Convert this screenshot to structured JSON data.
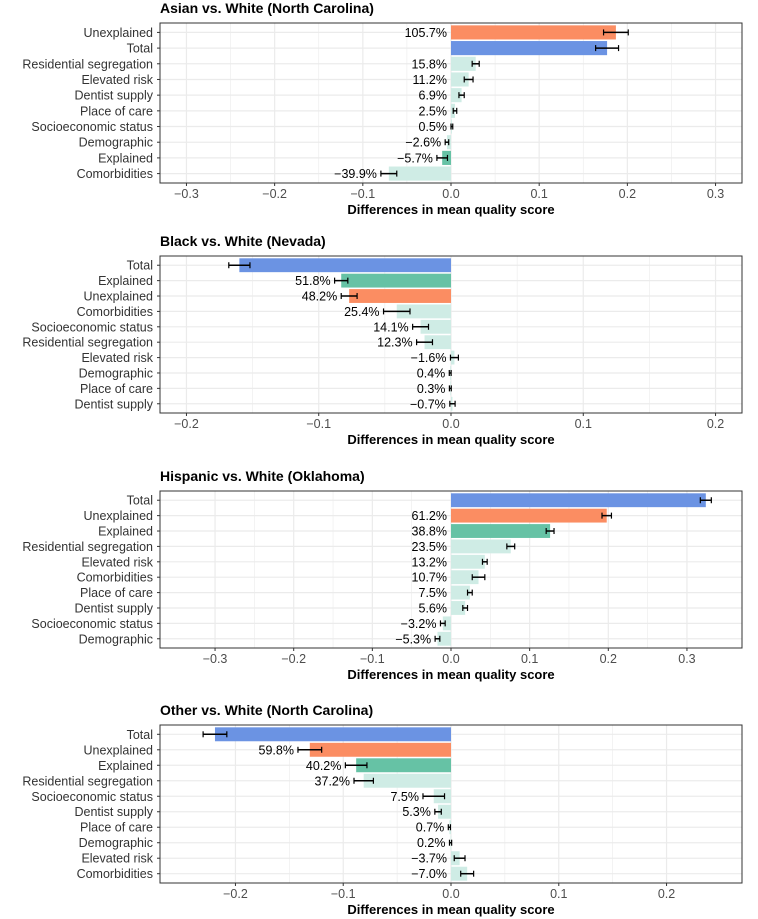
{
  "colors": {
    "Total": "#6b93e3",
    "Unexplained": "#fb8d62",
    "Explained": "#66c2a5",
    "component": "#cfece5",
    "grid": "#ebebeb",
    "frame": "#333333",
    "errorbar": "#000000"
  },
  "chart_data": [
    {
      "type": "bar",
      "orientation": "horizontal",
      "title": "Asian vs. White (North Carolina)",
      "xlabel": "Differences in mean quality score",
      "xlim": [
        -0.33,
        0.33
      ],
      "xticks": [
        -0.3,
        -0.2,
        -0.1,
        0,
        0.1,
        0.2,
        0.3
      ],
      "xtick_labels": [
        "−0.3",
        "−0.2",
        "−0.1",
        "0.0",
        "0.1",
        "0.2",
        "0.3"
      ],
      "categories": [
        "Unexplained",
        "Total",
        "Residential segregation",
        "Elevated risk",
        "Dentist supply",
        "Place of care",
        "Socioeconomic status",
        "Demographic",
        "Explained",
        "Comorbidities"
      ],
      "values": [
        0.187,
        0.177,
        0.028,
        0.02,
        0.012,
        0.0045,
        0.001,
        -0.0046,
        -0.01,
        -0.0705
      ],
      "errors": [
        0.014,
        0.013,
        0.004,
        0.005,
        0.003,
        0.002,
        0.001,
        0.002,
        0.006,
        0.009
      ],
      "labels": [
        "105.7%",
        "",
        "15.8%",
        "11.2%",
        "6.9%",
        "2.5%",
        "0.5%",
        "−2.6%",
        "−5.7%",
        "−39.9%"
      ]
    },
    {
      "type": "bar",
      "orientation": "horizontal",
      "title": "Black vs. White (Nevada)",
      "xlabel": "Differences in mean quality score",
      "xlim": [
        -0.22,
        0.22
      ],
      "xticks": [
        -0.2,
        -0.1,
        0,
        0.1,
        0.2
      ],
      "xtick_labels": [
        "−0.2",
        "−0.1",
        "0.0",
        "0.1",
        "0.2"
      ],
      "categories": [
        "Total",
        "Explained",
        "Unexplained",
        "Comorbidities",
        "Socioeconomic status",
        "Residential segregation",
        "Elevated risk",
        "Demographic",
        "Place of care",
        "Dentist supply"
      ],
      "values": [
        -0.16,
        -0.083,
        -0.077,
        -0.041,
        -0.023,
        -0.02,
        0.0026,
        -0.0006,
        -0.0005,
        0.0011
      ],
      "errors": [
        0.008,
        0.005,
        0.006,
        0.01,
        0.006,
        0.006,
        0.003,
        0.0007,
        0.0007,
        0.002
      ],
      "labels": [
        "",
        "51.8%",
        "48.2%",
        "25.4%",
        "14.1%",
        "12.3%",
        "−1.6%",
        "0.4%",
        "0.3%",
        "−0.7%"
      ]
    },
    {
      "type": "bar",
      "orientation": "horizontal",
      "title": "Hispanic vs. White (Oklahoma)",
      "xlabel": "Differences in mean quality score",
      "xlim": [
        -0.37,
        0.37
      ],
      "xticks": [
        -0.3,
        -0.2,
        -0.1,
        0,
        0.1,
        0.2,
        0.3
      ],
      "xtick_labels": [
        "−0.3",
        "−0.2",
        "−0.1",
        "0.0",
        "0.1",
        "0.2",
        "0.3"
      ],
      "categories": [
        "Total",
        "Unexplained",
        "Explained",
        "Residential segregation",
        "Elevated risk",
        "Comorbidities",
        "Place of care",
        "Dentist supply",
        "Socioeconomic status",
        "Demographic"
      ],
      "values": [
        0.324,
        0.198,
        0.126,
        0.076,
        0.043,
        0.035,
        0.024,
        0.018,
        -0.0104,
        -0.0172
      ],
      "errors": [
        0.007,
        0.006,
        0.005,
        0.005,
        0.003,
        0.008,
        0.003,
        0.003,
        0.003,
        0.003
      ],
      "labels": [
        "",
        "61.2%",
        "38.8%",
        "23.5%",
        "13.2%",
        "10.7%",
        "7.5%",
        "5.6%",
        "−3.2%",
        "−5.3%"
      ]
    },
    {
      "type": "bar",
      "orientation": "horizontal",
      "title": "Other vs. White (North Carolina)",
      "xlabel": "Differences in mean quality score",
      "xlim": [
        -0.27,
        0.27
      ],
      "xticks": [
        -0.2,
        -0.1,
        0,
        0.1,
        0.2
      ],
      "xtick_labels": [
        "−0.2",
        "−0.1",
        "0.0",
        "0.1",
        "0.2"
      ],
      "categories": [
        "Total",
        "Unexplained",
        "Explained",
        "Residential segregation",
        "Socioeconomic status",
        "Dentist supply",
        "Place of care",
        "Demographic",
        "Elevated risk",
        "Comorbidities"
      ],
      "values": [
        -0.219,
        -0.131,
        -0.088,
        -0.081,
        -0.016,
        -0.012,
        -0.0015,
        -0.0004,
        0.008,
        0.015
      ],
      "errors": [
        0.011,
        0.011,
        0.01,
        0.009,
        0.01,
        0.003,
        0.001,
        0.001,
        0.005,
        0.006
      ],
      "labels": [
        "",
        "59.8%",
        "40.2%",
        "37.2%",
        "7.5%",
        "5.3%",
        "0.7%",
        "0.2%",
        "−3.7%",
        "−7.0%"
      ]
    }
  ]
}
